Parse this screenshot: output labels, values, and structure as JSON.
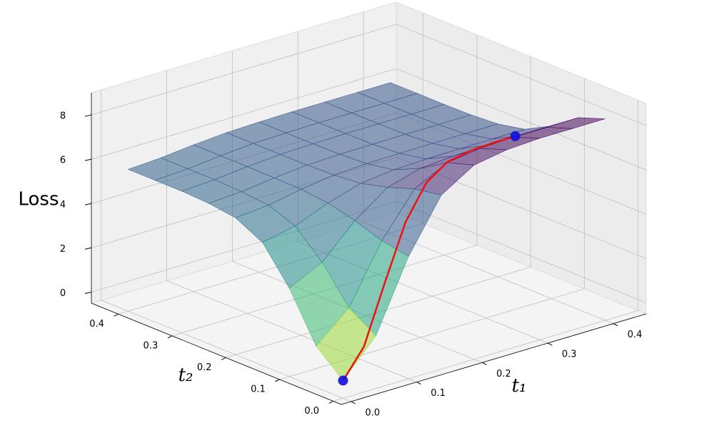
{
  "chart_data": {
    "type": "surface3d",
    "xlabel": "t₁",
    "ylabel": "t₂",
    "zlabel": "Loss",
    "xlim": [
      -0.015,
      0.45
    ],
    "ylim": [
      -0.015,
      0.45
    ],
    "zlim": [
      -0.5,
      9
    ],
    "xticks": [
      {
        "value": 0,
        "label": "0.0"
      },
      {
        "value": 0.1,
        "label": "0.1"
      },
      {
        "value": 0.2,
        "label": "0.2"
      },
      {
        "value": 0.3,
        "label": "0.3"
      },
      {
        "value": 0.4,
        "label": "0.4"
      }
    ],
    "yticks": [
      {
        "value": 0,
        "label": "0.0"
      },
      {
        "value": 0.1,
        "label": "0.1"
      },
      {
        "value": 0.2,
        "label": "0.2"
      },
      {
        "value": 0.3,
        "label": "0.3"
      },
      {
        "value": 0.4,
        "label": "0.4"
      }
    ],
    "zticks": [
      0,
      2,
      4,
      6,
      8
    ],
    "grid": true,
    "colormap": "viridis",
    "surface_alpha": 0.55,
    "surface": {
      "x": [
        0,
        0.05,
        0.1,
        0.15,
        0.2,
        0.25,
        0.3,
        0.35,
        0.4
      ],
      "y": [
        0,
        0.05,
        0.1,
        0.15,
        0.2,
        0.25,
        0.3,
        0.35,
        0.4
      ],
      "z": [
        [
          0.3,
          1.88,
          5.03,
          7.36,
          8.27,
          8.52,
          8.6,
          8.6,
          8.6
        ],
        [
          1.36,
          2.65,
          5.24,
          7.14,
          7.89,
          8.09,
          8.16,
          8.16,
          8.16
        ],
        [
          3.49,
          4.21,
          5.66,
          6.72,
          7.14,
          7.25,
          7.29,
          7.29,
          7.29
        ],
        [
          5.06,
          5.36,
          5.96,
          6.41,
          6.58,
          6.63,
          6.65,
          6.65,
          6.65
        ],
        [
          5.68,
          5.81,
          6.09,
          6.29,
          6.37,
          6.39,
          6.4,
          6.4,
          6.4
        ],
        [
          5.84,
          5.93,
          6.11,
          6.25,
          6.3,
          6.31,
          6.32,
          6.32,
          6.32
        ],
        [
          5.9,
          5.98,
          6.13,
          6.24,
          6.28,
          6.3,
          6.3,
          6.3,
          6.3
        ],
        [
          5.9,
          5.98,
          6.13,
          6.24,
          6.28,
          6.3,
          6.3,
          6.3,
          6.3
        ],
        [
          5.9,
          5.98,
          6.13,
          6.24,
          6.28,
          6.3,
          6.3,
          6.3,
          6.3
        ]
      ]
    },
    "path": {
      "color": "#ee1111",
      "marker_color": "#1010dd",
      "x": [
        0,
        0.04,
        0.08,
        0.12,
        0.16,
        0.2,
        0.24,
        0.28,
        0.32
      ],
      "y": [
        0,
        0.01,
        0.02,
        0.03,
        0.04,
        0.05,
        0.055,
        0.06,
        0.07
      ],
      "z": [
        0.3,
        1.38,
        3.81,
        6.11,
        7.44,
        7.92,
        8.03,
        8.0,
        7.83
      ]
    }
  }
}
